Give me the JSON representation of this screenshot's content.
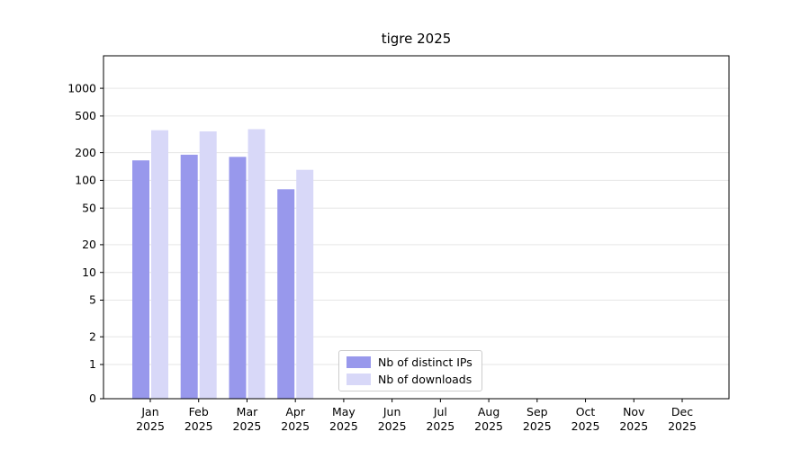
{
  "figure": {
    "title": "tigre 2025",
    "background": "#ffffff"
  },
  "chart_data": {
    "type": "bar",
    "title": "tigre 2025",
    "categories": [
      "Jan",
      "Feb",
      "Mar",
      "Apr",
      "May",
      "Jun",
      "Jul",
      "Aug",
      "Sep",
      "Oct",
      "Nov",
      "Dec"
    ],
    "category_year": "2025",
    "series": [
      {
        "name": "Nb of distinct IPs",
        "key": "distinct-ips",
        "color": "#9898ec",
        "values": [
          165,
          190,
          180,
          80,
          0,
          0,
          0,
          0,
          0,
          0,
          0,
          0
        ]
      },
      {
        "name": "Nb of downloads",
        "key": "downloads",
        "color": "#d8d8f8",
        "values": [
          350,
          340,
          360,
          130,
          0,
          0,
          0,
          0,
          0,
          0,
          0,
          0
        ]
      }
    ],
    "xlabel": "",
    "ylabel": "",
    "yscale": "symlog",
    "yticks": [
      0,
      1,
      2,
      5,
      10,
      20,
      50,
      100,
      200,
      500,
      1000
    ],
    "ylim": [
      0,
      2000
    ],
    "grid": "horizontal",
    "legend_position": "inside-bottom-center",
    "colors": {
      "grid": "#e6e6e6",
      "spine": "#000000",
      "tick_label": "#000000",
      "title": "#000000"
    }
  }
}
